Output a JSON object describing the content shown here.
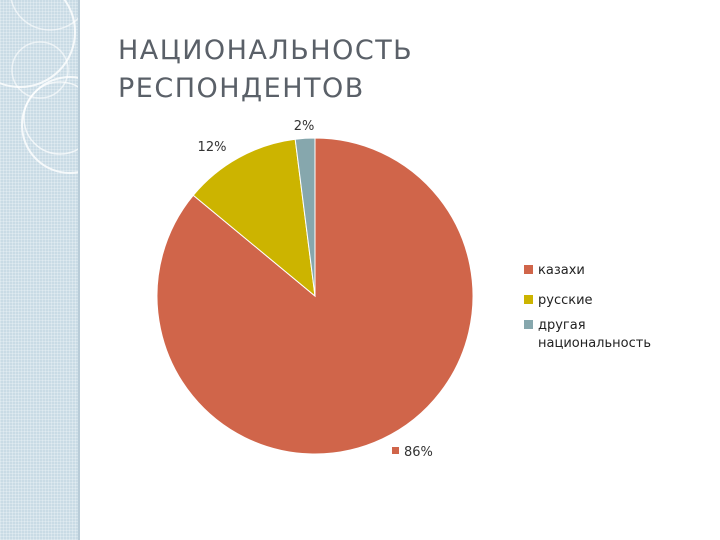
{
  "slide": {
    "title_line1": "НАЦИОНАЛЬНОСТЬ",
    "title_line2": "РЕСПОНДЕНТОВ"
  },
  "chart_data": {
    "type": "pie",
    "title": "",
    "categories": [
      "казахи",
      "русские",
      "другая национальность"
    ],
    "values": [
      86,
      12,
      2
    ],
    "data_labels": [
      "86%",
      "12%",
      "2%"
    ],
    "colors": [
      "#d0654a",
      "#ccb400",
      "#86a7ad"
    ],
    "legend": {
      "placement": "right",
      "entries": [
        "казахи",
        "русские",
        "другая национальность"
      ],
      "wrapped_lines": [
        [
          "казахи"
        ],
        [
          "русские"
        ],
        [
          "другая",
          "национальность"
        ]
      ]
    },
    "start_angle_deg": 0,
    "direction": "clockwise"
  }
}
